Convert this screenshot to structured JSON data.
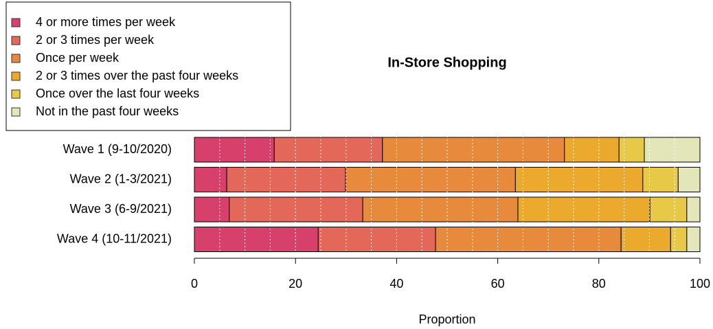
{
  "chart_data": {
    "type": "stacked_barh",
    "title": "In-Store Shopping",
    "xlabel": "Proportion",
    "categories": [
      "Wave 1 (9-10/2020)",
      "Wave 2 (1-3/2021)",
      "Wave 3 (6-9/2021)",
      "Wave 4 (10-11/2021)"
    ],
    "series": [
      {
        "name": "4 or more times per week",
        "color": "#d6406a",
        "values": [
          15.8,
          6.4,
          6.9,
          24.5
        ]
      },
      {
        "name": "2 or 3 times per week",
        "color": "#e3685a",
        "values": [
          21.4,
          23.5,
          26.4,
          23.2
        ]
      },
      {
        "name": "Once per week",
        "color": "#e88a3c",
        "values": [
          36.0,
          33.6,
          30.7,
          36.7
        ]
      },
      {
        "name": "2 or 3 times over the past four weeks",
        "color": "#ebaa2e",
        "values": [
          10.8,
          25.2,
          26.1,
          9.8
        ]
      },
      {
        "name": "Once over the last four weeks",
        "color": "#e8c947",
        "values": [
          5.0,
          7.0,
          7.3,
          3.2
        ]
      },
      {
        "name": "Not in the past four weeks",
        "color": "#e3e6b8",
        "values": [
          11.0,
          4.3,
          2.6,
          2.6
        ]
      }
    ],
    "xlim": [
      0,
      100
    ],
    "xticks": [
      0,
      20,
      40,
      60,
      80,
      100
    ],
    "xgrid": [
      5,
      10,
      15,
      20,
      25,
      30,
      35,
      40,
      45,
      50,
      55,
      60,
      65,
      70,
      75,
      80,
      85,
      90,
      95
    ],
    "legend": "top-left"
  }
}
